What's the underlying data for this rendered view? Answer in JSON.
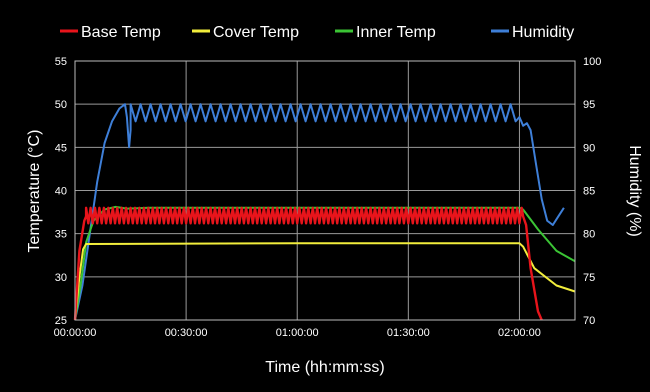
{
  "chart_data": {
    "type": "line",
    "xlabel": "Time (hh:mm:ss)",
    "ylabel_left": "Temperature (°C)",
    "ylabel_right": "Humidity (%)",
    "x_ticks": [
      "00:00:00",
      "00:30:00",
      "01:00:00",
      "01:30:00",
      "02:00:00"
    ],
    "x_tick_minutes": [
      0,
      30,
      60,
      90,
      120
    ],
    "xlim_minutes": [
      0,
      135
    ],
    "ylim_left": [
      25,
      55
    ],
    "y_ticks_left": [
      25,
      30,
      35,
      40,
      45,
      50,
      55
    ],
    "ylim_right": [
      70,
      100
    ],
    "y_ticks_right": [
      70,
      75,
      80,
      85,
      90,
      95,
      100
    ],
    "grid": true,
    "legend_position": "top",
    "background": "#000000",
    "series": [
      {
        "name": "Base Temp",
        "color": "#e8141b",
        "axis": "left",
        "oscillation": {
          "start_min": 3,
          "end_min": 121,
          "period_min": 1.2,
          "low": 36.2,
          "high": 38.0
        },
        "points": [
          [
            0,
            25
          ],
          [
            1.2,
            33
          ],
          [
            2.5,
            36.5
          ],
          [
            3,
            37
          ],
          [
            121,
            37
          ],
          [
            121.8,
            36
          ],
          [
            123,
            31
          ],
          [
            125,
            26
          ],
          [
            126,
            24.5
          ]
        ]
      },
      {
        "name": "Cover Temp",
        "color": "#f2ee3c",
        "axis": "left",
        "points": [
          [
            0,
            25
          ],
          [
            1.2,
            30
          ],
          [
            2.2,
            33.2
          ],
          [
            3,
            33.8
          ],
          [
            60,
            33.9
          ],
          [
            120,
            33.9
          ],
          [
            121,
            33.5
          ],
          [
            124,
            31
          ],
          [
            130,
            29
          ],
          [
            135,
            28.3
          ]
        ]
      },
      {
        "name": "Inner Temp",
        "color": "#3bc435",
        "axis": "left",
        "points": [
          [
            0,
            25
          ],
          [
            1.5,
            29
          ],
          [
            3,
            34
          ],
          [
            5,
            36.5
          ],
          [
            8,
            37.8
          ],
          [
            11,
            38.1
          ],
          [
            14,
            37.9
          ],
          [
            20,
            38
          ],
          [
            60,
            38
          ],
          [
            120,
            38
          ],
          [
            121,
            37.8
          ],
          [
            125,
            35.5
          ],
          [
            130,
            33
          ],
          [
            135,
            31.8
          ]
        ]
      },
      {
        "name": "Humidity",
        "color": "#3e7fd8",
        "axis": "right",
        "oscillation": {
          "start_min": 15,
          "end_min": 120,
          "period_min": 2.7,
          "low": 93.0,
          "high": 95.0
        },
        "points": [
          [
            0,
            70
          ],
          [
            2,
            74
          ],
          [
            4,
            80
          ],
          [
            6,
            86
          ],
          [
            8,
            90.5
          ],
          [
            10,
            93
          ],
          [
            12,
            94.5
          ],
          [
            13.5,
            95
          ],
          [
            14,
            93.5
          ],
          [
            14.6,
            90
          ],
          [
            15,
            92
          ],
          [
            15.5,
            95
          ],
          [
            16.3,
            91
          ],
          [
            17,
            93
          ],
          [
            17.8,
            95
          ],
          [
            18.6,
            90.5
          ],
          [
            19.4,
            93
          ],
          [
            20.1,
            95
          ],
          [
            120,
            93.5
          ],
          [
            120.5,
            93
          ],
          [
            121,
            92.5
          ],
          [
            122,
            92.8
          ],
          [
            123,
            92
          ],
          [
            124.5,
            88
          ],
          [
            126,
            84
          ],
          [
            127.5,
            81.5
          ],
          [
            129,
            81
          ],
          [
            130.5,
            82
          ],
          [
            132,
            83
          ]
        ]
      }
    ]
  }
}
